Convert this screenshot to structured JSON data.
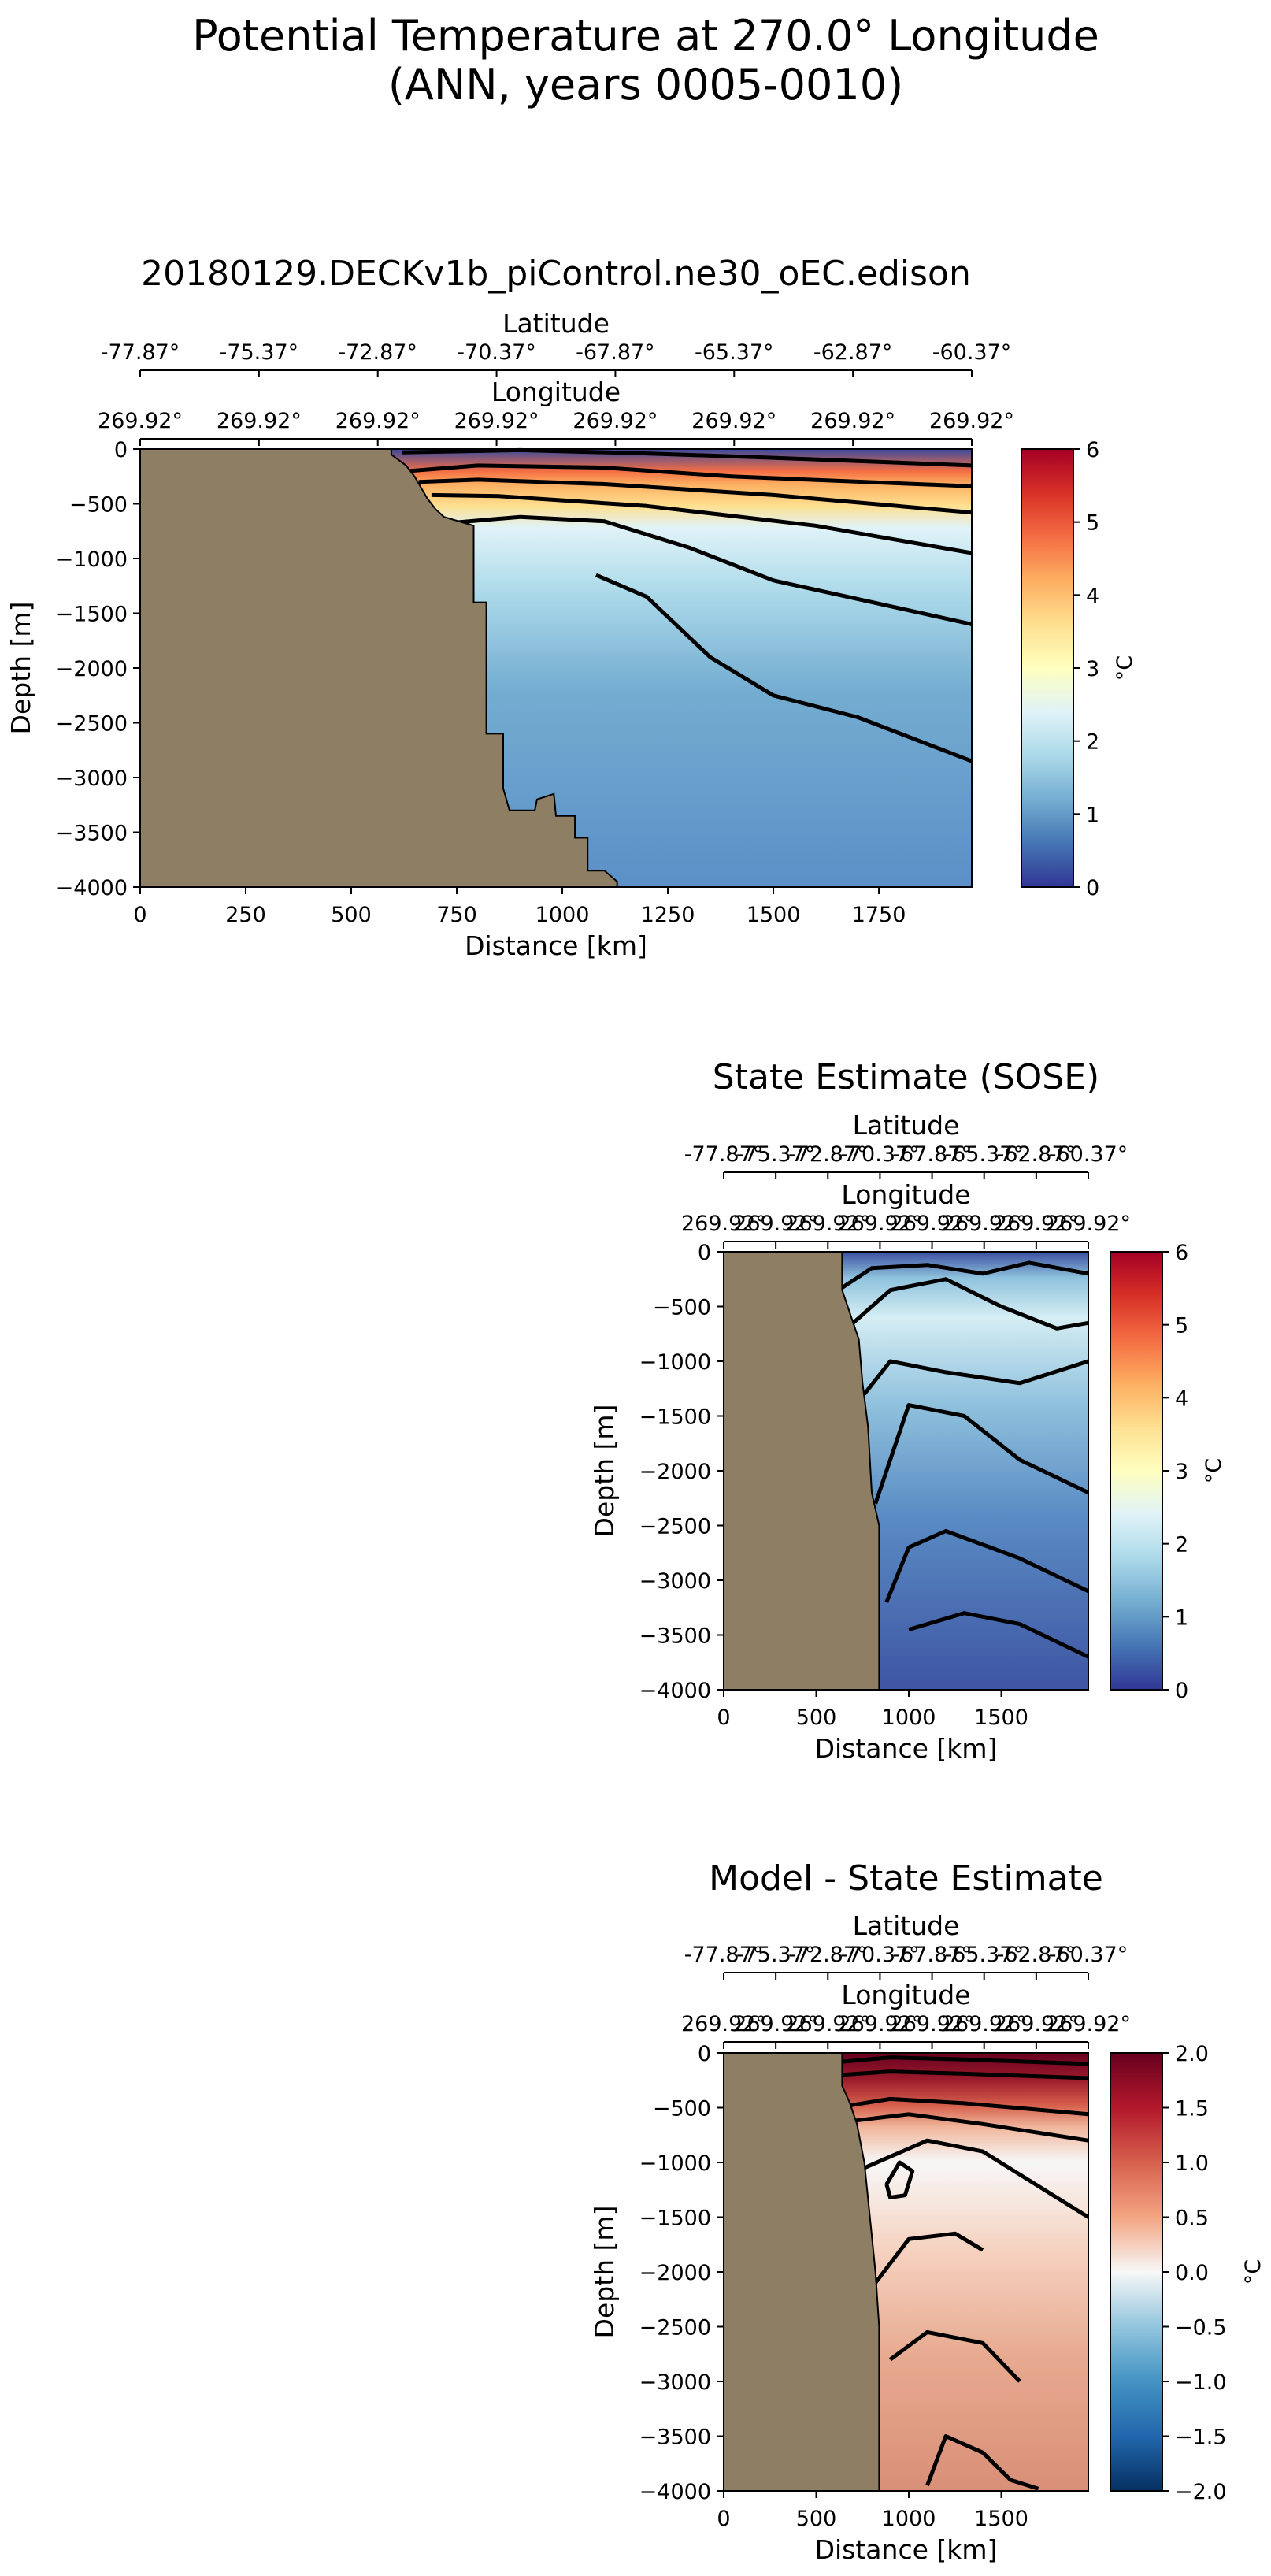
{
  "figure": {
    "title_line1": "Potential Temperature at 270.0° Longitude",
    "title_line2": "(ANN, years 0005-0010)"
  },
  "chart_data": [
    {
      "type": "heatmap",
      "title": "20180129.DECKv1b_piControl.ne30_oEC.edison",
      "xlabel": "Distance [km]",
      "ylabel": "Depth [m]",
      "xlim": [
        0,
        1970
      ],
      "ylim": [
        -4000,
        0
      ],
      "x_ticks": [
        0,
        250,
        500,
        750,
        1000,
        1250,
        1500,
        1750
      ],
      "y_ticks": [
        0,
        -500,
        -1000,
        -1500,
        -2000,
        -2500,
        -3000,
        -3500,
        -4000
      ],
      "y_tick_labels": [
        "0",
        "−500",
        "−1000",
        "−1500",
        "−2000",
        "−2500",
        "−3000",
        "−3500",
        "−4000"
      ],
      "latitude_axis_label": "Latitude",
      "latitude_ticks": [
        "-77.87°",
        "-75.37°",
        "-72.87°",
        "-70.37°",
        "-67.87°",
        "-65.37°",
        "-62.87°",
        "-60.37°"
      ],
      "longitude_axis_label": "Longitude",
      "longitude_ticks": [
        "269.92°",
        "269.92°",
        "269.92°",
        "269.92°",
        "269.92°",
        "269.92°",
        "269.92°",
        "269.92°"
      ],
      "colorbar": {
        "label": "°C",
        "range": [
          0,
          6
        ],
        "ticks": [
          "0",
          "1",
          "2",
          "3",
          "4",
          "5",
          "6"
        ],
        "colormap": "RdYlBu_r"
      },
      "bathymetry": [
        [
          0,
          0
        ],
        [
          595,
          0
        ],
        [
          595,
          -50
        ],
        [
          630,
          -150
        ],
        [
          650,
          -250
        ],
        [
          680,
          -450
        ],
        [
          700,
          -550
        ],
        [
          720,
          -620
        ],
        [
          790,
          -700
        ],
        [
          790,
          -1400
        ],
        [
          820,
          -1400
        ],
        [
          820,
          -2600
        ],
        [
          860,
          -2600
        ],
        [
          860,
          -3100
        ],
        [
          875,
          -3300
        ],
        [
          935,
          -3300
        ],
        [
          940,
          -3200
        ],
        [
          980,
          -3150
        ],
        [
          985,
          -3350
        ],
        [
          1030,
          -3350
        ],
        [
          1030,
          -3550
        ],
        [
          1060,
          -3550
        ],
        [
          1060,
          -3850
        ],
        [
          1100,
          -3850
        ],
        [
          1130,
          -3950
        ],
        [
          1130,
          -4000
        ],
        [
          0,
          -4000
        ]
      ],
      "contours": [
        [
          [
            620,
            -30
          ],
          [
            900,
            -10
          ],
          [
            1200,
            -40
          ],
          [
            1500,
            -80
          ],
          [
            1970,
            -150
          ]
        ],
        [
          [
            640,
            -200
          ],
          [
            800,
            -150
          ],
          [
            1100,
            -170
          ],
          [
            1400,
            -250
          ],
          [
            1970,
            -340
          ]
        ],
        [
          [
            660,
            -300
          ],
          [
            800,
            -280
          ],
          [
            1100,
            -320
          ],
          [
            1500,
            -420
          ],
          [
            1970,
            -580
          ]
        ],
        [
          [
            690,
            -420
          ],
          [
            850,
            -430
          ],
          [
            1200,
            -520
          ],
          [
            1600,
            -700
          ],
          [
            1970,
            -950
          ]
        ],
        [
          [
            720,
            -680
          ],
          [
            900,
            -620
          ],
          [
            1100,
            -660
          ],
          [
            1300,
            -900
          ],
          [
            1500,
            -1200
          ],
          [
            1970,
            -1600
          ]
        ],
        [
          [
            1080,
            -1150
          ],
          [
            1200,
            -1350
          ],
          [
            1350,
            -1900
          ],
          [
            1500,
            -2250
          ],
          [
            1700,
            -2450
          ],
          [
            1970,
            -2850
          ]
        ]
      ]
    },
    {
      "type": "heatmap",
      "title": "State Estimate (SOSE)",
      "xlabel": "Distance [km]",
      "ylabel": "Depth [m]",
      "xlim": [
        0,
        1970
      ],
      "ylim": [
        -4000,
        0
      ],
      "x_ticks": [
        0,
        500,
        1000,
        1500
      ],
      "y_ticks": [
        0,
        -500,
        -1000,
        -1500,
        -2000,
        -2500,
        -3000,
        -3500,
        -4000
      ],
      "y_tick_labels": [
        "0",
        "−500",
        "−1000",
        "−1500",
        "−2000",
        "−2500",
        "−3000",
        "−3500",
        "−4000"
      ],
      "latitude_axis_label": "Latitude",
      "latitude_ticks": [
        "-77.87°",
        "-75.37°",
        "-72.87°",
        "-70.37°",
        "-67.87°",
        "-65.37°",
        "-62.87°",
        "-60.37°"
      ],
      "longitude_axis_label": "Longitude",
      "longitude_ticks": [
        "269.92°",
        "269.92°",
        "269.92°",
        "269.92°",
        "269.92°",
        "269.92°",
        "269.92°",
        "269.92°"
      ],
      "colorbar": {
        "label": "°C",
        "range": [
          0,
          6
        ],
        "ticks": [
          "0",
          "1",
          "2",
          "3",
          "4",
          "5",
          "6"
        ],
        "colormap": "RdYlBu_r"
      },
      "bathymetry": [
        [
          0,
          0
        ],
        [
          640,
          0
        ],
        [
          640,
          -350
        ],
        [
          660,
          -450
        ],
        [
          700,
          -650
        ],
        [
          730,
          -800
        ],
        [
          750,
          -1200
        ],
        [
          780,
          -1600
        ],
        [
          800,
          -2200
        ],
        [
          840,
          -2500
        ],
        [
          840,
          -4000
        ],
        [
          0,
          -4000
        ]
      ],
      "contours": [
        [
          [
            620,
            -350
          ],
          [
            800,
            -150
          ],
          [
            1100,
            -120
          ],
          [
            1400,
            -200
          ],
          [
            1650,
            -100
          ],
          [
            1970,
            -200
          ]
        ],
        [
          [
            700,
            -650
          ],
          [
            900,
            -350
          ],
          [
            1200,
            -250
          ],
          [
            1500,
            -500
          ],
          [
            1800,
            -700
          ],
          [
            1970,
            -650
          ]
        ],
        [
          [
            760,
            -1300
          ],
          [
            900,
            -1000
          ],
          [
            1200,
            -1100
          ],
          [
            1600,
            -1200
          ],
          [
            1970,
            -1000
          ]
        ],
        [
          [
            820,
            -2300
          ],
          [
            1000,
            -1400
          ],
          [
            1300,
            -1500
          ],
          [
            1600,
            -1900
          ],
          [
            1970,
            -2200
          ]
        ],
        [
          [
            880,
            -3200
          ],
          [
            1000,
            -2700
          ],
          [
            1200,
            -2550
          ],
          [
            1600,
            -2800
          ],
          [
            1970,
            -3100
          ]
        ],
        [
          [
            1000,
            -3450
          ],
          [
            1300,
            -3300
          ],
          [
            1600,
            -3400
          ],
          [
            1970,
            -3700
          ]
        ]
      ]
    },
    {
      "type": "heatmap",
      "title": "Model - State Estimate",
      "xlabel": "Distance [km]",
      "ylabel": "Depth [m]",
      "xlim": [
        0,
        1970
      ],
      "ylim": [
        -4000,
        0
      ],
      "x_ticks": [
        0,
        500,
        1000,
        1500
      ],
      "y_ticks": [
        0,
        -500,
        -1000,
        -1500,
        -2000,
        -2500,
        -3000,
        -3500,
        -4000
      ],
      "y_tick_labels": [
        "0",
        "−500",
        "−1000",
        "−1500",
        "−2000",
        "−2500",
        "−3000",
        "−3500",
        "−4000"
      ],
      "latitude_axis_label": "Latitude",
      "latitude_ticks": [
        "-77.87°",
        "-75.37°",
        "-72.87°",
        "-70.37°",
        "-67.87°",
        "-65.37°",
        "-62.87°",
        "-60.37°"
      ],
      "longitude_axis_label": "Longitude",
      "longitude_ticks": [
        "269.92°",
        "269.92°",
        "269.92°",
        "269.92°",
        "269.92°",
        "269.92°",
        "269.92°",
        "269.92°"
      ],
      "colorbar": {
        "label": "°C",
        "range": [
          -2,
          2
        ],
        "ticks": [
          "−2.0",
          "−1.5",
          "−1.0",
          "−0.5",
          "0.0",
          "0.5",
          "1.0",
          "1.5",
          "2.0"
        ],
        "colormap": "RdBu_r"
      },
      "bathymetry": [
        [
          0,
          0
        ],
        [
          640,
          0
        ],
        [
          640,
          -300
        ],
        [
          680,
          -450
        ],
        [
          720,
          -650
        ],
        [
          760,
          -1000
        ],
        [
          790,
          -1500
        ],
        [
          820,
          -2000
        ],
        [
          840,
          -2500
        ],
        [
          840,
          -4000
        ],
        [
          0,
          -4000
        ]
      ],
      "contours": [
        [
          [
            640,
            -80
          ],
          [
            900,
            -40
          ],
          [
            1300,
            -60
          ],
          [
            1970,
            -100
          ]
        ],
        [
          [
            640,
            -200
          ],
          [
            900,
            -170
          ],
          [
            1300,
            -190
          ],
          [
            1970,
            -230
          ]
        ],
        [
          [
            680,
            -480
          ],
          [
            900,
            -420
          ],
          [
            1300,
            -460
          ],
          [
            1970,
            -560
          ]
        ],
        [
          [
            700,
            -620
          ],
          [
            1000,
            -560
          ],
          [
            1400,
            -650
          ],
          [
            1970,
            -800
          ]
        ],
        [
          [
            760,
            -1050
          ],
          [
            1100,
            -800
          ],
          [
            1400,
            -900
          ],
          [
            1970,
            -1500
          ]
        ],
        [
          [
            880,
            -1200
          ],
          [
            950,
            -1000
          ],
          [
            1020,
            -1080
          ],
          [
            980,
            -1300
          ],
          [
            900,
            -1320
          ],
          [
            880,
            -1200
          ]
        ],
        [
          [
            820,
            -2100
          ],
          [
            1000,
            -1700
          ],
          [
            1250,
            -1650
          ],
          [
            1400,
            -1800
          ]
        ],
        [
          [
            900,
            -2800
          ],
          [
            1100,
            -2550
          ],
          [
            1400,
            -2650
          ],
          [
            1600,
            -3000
          ]
        ],
        [
          [
            1100,
            -3950
          ],
          [
            1200,
            -3500
          ],
          [
            1400,
            -3650
          ],
          [
            1550,
            -3900
          ],
          [
            1700,
            -3980
          ]
        ]
      ]
    }
  ]
}
